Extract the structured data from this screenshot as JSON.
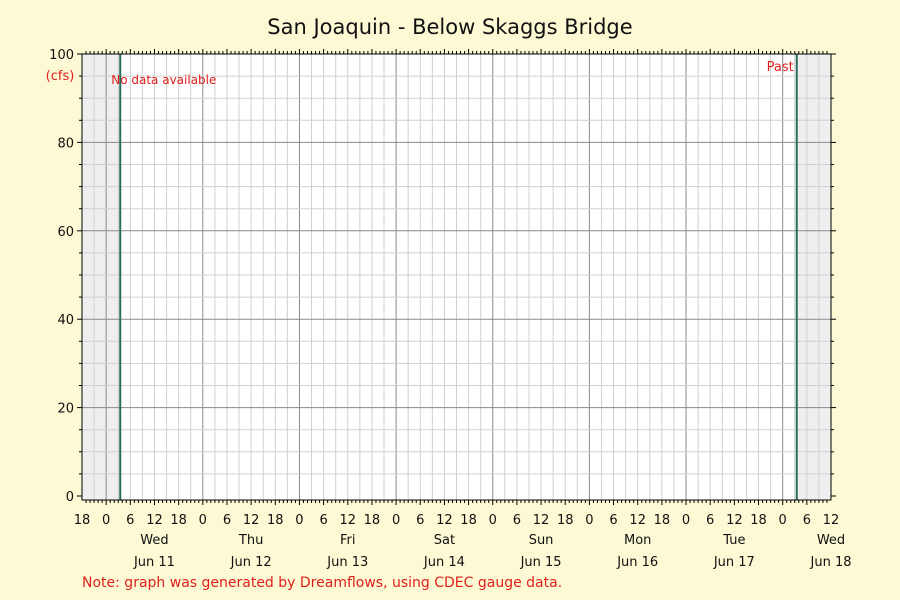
{
  "chart_data": {
    "type": "line",
    "title": "San Joaquin - Below Skaggs Bridge",
    "ylabel": "(cfs)",
    "ylim": [
      0,
      100
    ],
    "yticks": [
      0,
      20,
      40,
      60,
      80,
      100
    ],
    "xlim_hours": [
      -6,
      180
    ],
    "hour_tick_labels": [
      "18",
      "0",
      "6",
      "12",
      "18",
      "0",
      "6",
      "12",
      "18",
      "0",
      "6",
      "12",
      "18",
      "0",
      "6",
      "12",
      "18",
      "0",
      "6",
      "12",
      "18",
      "0",
      "6",
      "12",
      "18",
      "0",
      "6",
      "12",
      "18",
      "0",
      "6",
      "12"
    ],
    "days": [
      {
        "weekday": "Wed",
        "date": "Jun 11"
      },
      {
        "weekday": "Thu",
        "date": "Jun 12"
      },
      {
        "weekday": "Fri",
        "date": "Jun 13"
      },
      {
        "weekday": "Sat",
        "date": "Jun 14"
      },
      {
        "weekday": "Sun",
        "date": "Jun 15"
      },
      {
        "weekday": "Mon",
        "date": "Jun 16"
      },
      {
        "weekday": "Tue",
        "date": "Jun 17"
      },
      {
        "weekday": "Wed",
        "date": "Jun 18"
      }
    ],
    "data_window_hours": [
      3.5,
      171.5
    ],
    "series": [],
    "annotations": {
      "no_data": "No data available",
      "past": "Past"
    },
    "note": "Note: graph was generated by Dreamflows, using CDEC gauge data.",
    "grid": true,
    "colors": {
      "background": "#fcf9d4",
      "shaded": "#efefef",
      "marker_line": "#2a6e5e",
      "annotation": "#e0201c"
    }
  }
}
